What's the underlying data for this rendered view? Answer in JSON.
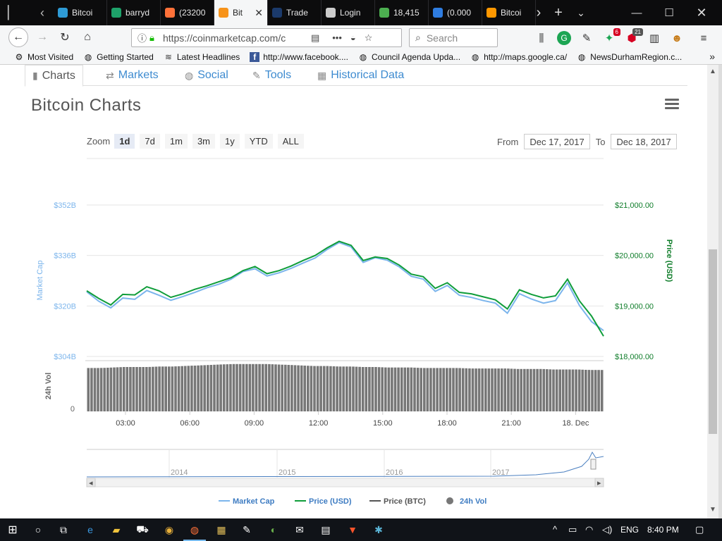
{
  "tabs": [
    {
      "title": "Bitcoi",
      "color": "#2e9bd6"
    },
    {
      "title": "barryd",
      "color": "#1ea26a"
    },
    {
      "title": "(23200",
      "color": "#ff7139"
    },
    {
      "title": "Bit",
      "color": "#f7931a",
      "active": true
    },
    {
      "title": "Trade",
      "color": "#1b3a6b"
    },
    {
      "title": "Login",
      "color": "#cccccc"
    },
    {
      "title": "18,415",
      "color": "#4caf50"
    },
    {
      "title": "(0.000",
      "color": "#2f7de1"
    },
    {
      "title": "Bitcoi",
      "color": "#ff9800"
    }
  ],
  "nav": {
    "url": "https://coinmarketcap.com/c",
    "search_placeholder": "Search",
    "badge_count_1": "6",
    "badge_count_2": "21"
  },
  "bookmarks": [
    {
      "label": "Most Visited",
      "icon": "gear-icon"
    },
    {
      "label": "Getting Started",
      "icon": "globe-icon"
    },
    {
      "label": "Latest Headlines",
      "icon": "rss-icon"
    },
    {
      "label": "http://www.facebook....",
      "icon": "facebook-icon"
    },
    {
      "label": "Council Agenda Upda...",
      "icon": "globe-icon"
    },
    {
      "label": "http://maps.google.ca/",
      "icon": "globe-icon"
    },
    {
      "label": "NewsDurhamRegion.c...",
      "icon": "globe-icon"
    }
  ],
  "subtabs": [
    {
      "label": "Charts",
      "icon": "chart-icon",
      "active": true
    },
    {
      "label": "Markets",
      "icon": "exchange-icon"
    },
    {
      "label": "Social",
      "icon": "globe-icon"
    },
    {
      "label": "Tools",
      "icon": "wrench-icon"
    },
    {
      "label": "Historical Data",
      "icon": "calendar-icon"
    }
  ],
  "chart_title": "Bitcoin Charts",
  "zoom": {
    "label": "Zoom",
    "options": [
      "1d",
      "7d",
      "1m",
      "3m",
      "1y",
      "YTD",
      "ALL"
    ],
    "active": "1d"
  },
  "range": {
    "from_label": "From",
    "from_value": "Dec 17, 2017",
    "to_label": "To",
    "to_value": "Dec 18, 2017"
  },
  "chart_data": {
    "type": "line",
    "x_tick_labels": [
      "03:00",
      "06:00",
      "09:00",
      "12:00",
      "15:00",
      "18:00",
      "21:00",
      "18. Dec"
    ],
    "left_axis": {
      "label": "Market Cap",
      "ticks": [
        "$352B",
        "$336B",
        "$320B",
        "$304B"
      ],
      "range": [
        304,
        352
      ],
      "color": "#7cb5ec"
    },
    "right_axis": {
      "label": "Price (USD)",
      "ticks": [
        "$21,000.00",
        "$20,000.00",
        "$19,000.00",
        "$18,000.00"
      ],
      "range": [
        18000,
        21000
      ],
      "color": "#0f7d2a"
    },
    "volume_axis": {
      "label": "24h Vol",
      "ticks": [
        "0"
      ]
    },
    "series": [
      {
        "name": "Market Cap",
        "color": "#7cb5ec",
        "values": [
          324.5,
          321.5,
          319.4,
          322.5,
          322.1,
          324.9,
          323.4,
          321.8,
          323.0,
          324.3,
          325.8,
          326.9,
          328.5,
          330.9,
          331.8,
          329.5,
          330.5,
          331.9,
          333.6,
          335.2,
          337.9,
          340.1,
          338.7,
          333.8,
          335.3,
          334.5,
          332.4,
          329.4,
          328.5,
          324.6,
          326.5,
          323.4,
          322.7,
          321.7,
          320.9,
          317.7,
          323.9,
          322.2,
          320.9,
          321.7,
          327.3,
          320.1,
          315.0,
          312.2
        ]
      },
      {
        "name": "Price (USD)",
        "values": [
          19300,
          19150,
          19020,
          19230,
          19220,
          19380,
          19300,
          19170,
          19240,
          19330,
          19400,
          19480,
          19560,
          19700,
          19780,
          19640,
          19700,
          19790,
          19900,
          20000,
          20150,
          20280,
          20200,
          19900,
          19970,
          19940,
          19810,
          19630,
          19580,
          19350,
          19460,
          19270,
          19240,
          19180,
          19120,
          18940,
          19320,
          19230,
          19160,
          19200,
          19530,
          19100,
          18800,
          18400
        ],
        "color": "#0f9d3a"
      },
      {
        "name": "Price (BTC)",
        "color": "#555555",
        "values": []
      },
      {
        "name": "24h Vol",
        "color": "#777777",
        "values": [
          0.88,
          0.88,
          0.89,
          0.9,
          0.9,
          0.9,
          0.91,
          0.91,
          0.92,
          0.93,
          0.94,
          0.95,
          0.96,
          0.96,
          0.96,
          0.96,
          0.95,
          0.94,
          0.93,
          0.92,
          0.92,
          0.91,
          0.91,
          0.9,
          0.9,
          0.89,
          0.89,
          0.89,
          0.88,
          0.88,
          0.88,
          0.88,
          0.87,
          0.87,
          0.87,
          0.87,
          0.86,
          0.86,
          0.86,
          0.85,
          0.85,
          0.85,
          0.84,
          0.84
        ]
      }
    ],
    "navigator": {
      "labels": [
        "2014",
        "2015",
        "2016",
        "2017"
      ]
    },
    "legend_position": "bottom",
    "grid": true
  },
  "taskbar": {
    "lang": "ENG",
    "time": "8:40 PM"
  }
}
